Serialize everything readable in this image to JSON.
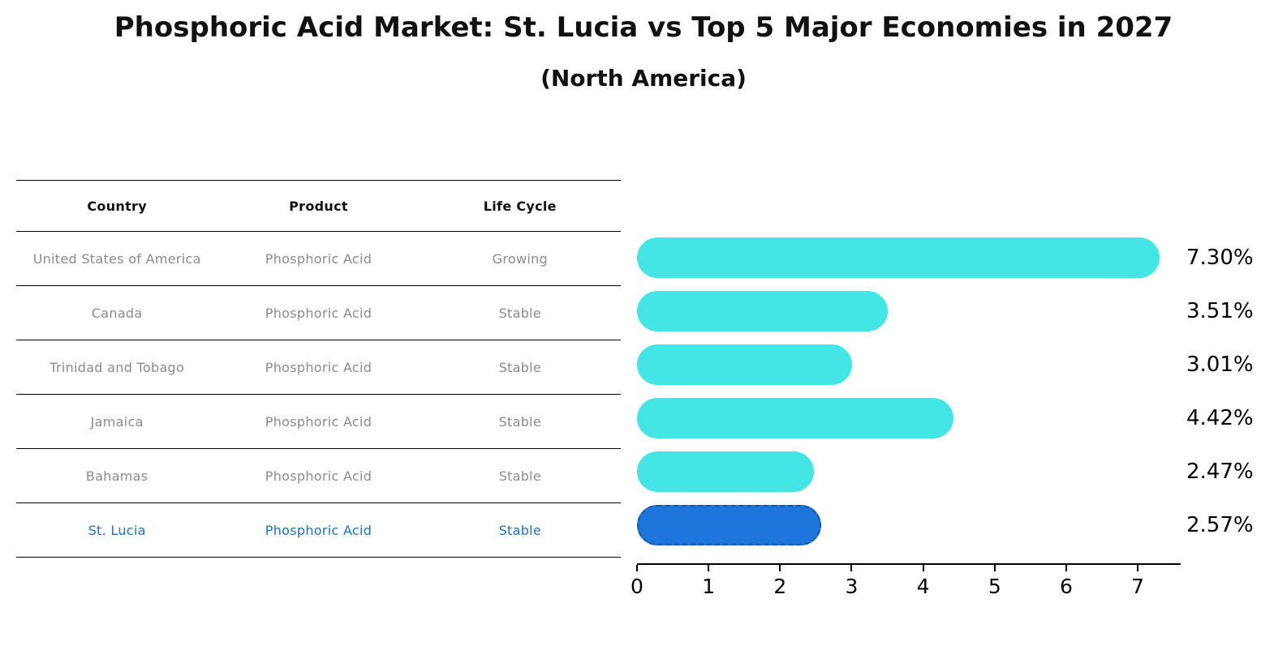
{
  "header": {
    "title": "Phosphoric Acid Market: St. Lucia vs Top 5 Major Economies in 2027",
    "subtitle": "(North America)"
  },
  "table": {
    "headers": [
      "Country",
      "Product",
      "Life Cycle"
    ],
    "rows": [
      {
        "country": "United States of America",
        "product": "Phosphoric Acid",
        "life_cycle": "Growing"
      },
      {
        "country": "Canada",
        "product": "Phosphoric Acid",
        "life_cycle": "Stable"
      },
      {
        "country": "Trinidad and Tobago",
        "product": "Phosphoric Acid",
        "life_cycle": "Stable"
      },
      {
        "country": "Jamaica",
        "product": "Phosphoric Acid",
        "life_cycle": "Stable"
      },
      {
        "country": "Bahamas",
        "product": "Phosphoric Acid",
        "life_cycle": "Stable"
      },
      {
        "country": "St. Lucia",
        "product": "Phosphoric Acid",
        "life_cycle": "Stable"
      }
    ]
  },
  "chart_data": {
    "type": "bar",
    "orientation": "horizontal",
    "title": "Phosphoric Acid Market: St. Lucia vs Top 5 Major Economies in 2027 (North America)",
    "categories": [
      "United States of America",
      "Canada",
      "Trinidad and Tobago",
      "Jamaica",
      "Bahamas",
      "St. Lucia"
    ],
    "values": [
      7.3,
      3.51,
      3.01,
      4.42,
      2.47,
      2.57
    ],
    "value_labels": [
      "7.30%",
      "3.51%",
      "3.01%",
      "4.42%",
      "2.47%",
      "2.57%"
    ],
    "xticks": [
      "0",
      "1",
      "2",
      "3",
      "4",
      "5",
      "6",
      "7"
    ],
    "xlim": [
      0,
      7.6
    ],
    "grid": false,
    "legend": false,
    "bar_color": "#43E5E5",
    "highlight": {
      "index": 5,
      "color": "#1D74DB",
      "border": "#1257A6"
    }
  },
  "styles": {
    "header_text": "#111111",
    "cell_text": "#8B8B8B",
    "accent_text": "#1B72C8",
    "line_color": "#000000"
  }
}
